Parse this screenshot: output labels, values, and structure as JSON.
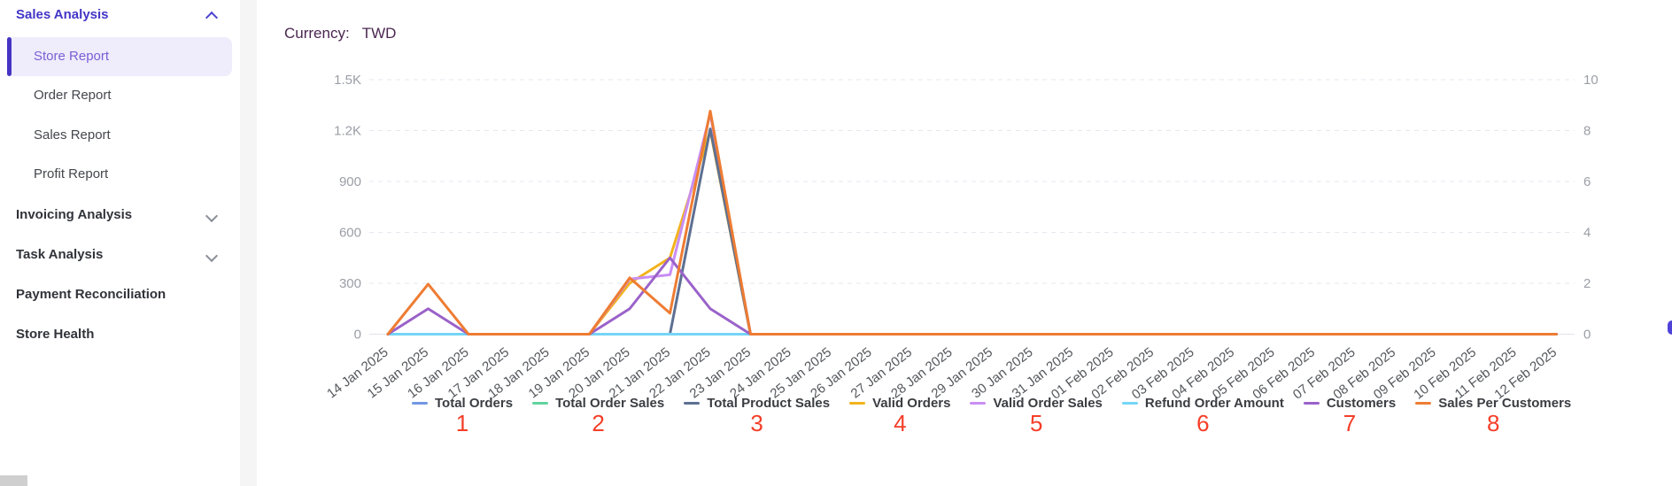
{
  "sidebar": {
    "sections": [
      {
        "label": "Sales Analysis",
        "state": "expanded",
        "accent_color": "#4335c6",
        "items": [
          {
            "label": "Store Report",
            "active": true
          },
          {
            "label": "Order Report",
            "active": false
          },
          {
            "label": "Sales Report",
            "active": false
          },
          {
            "label": "Profit Report",
            "active": false
          }
        ]
      },
      {
        "label": "Invoicing Analysis",
        "state": "collapsed"
      },
      {
        "label": "Task Analysis",
        "state": "collapsed"
      },
      {
        "label": "Payment Reconciliation",
        "state": "none"
      },
      {
        "label": "Store Health",
        "state": "none"
      }
    ]
  },
  "header": {
    "currency_label": "Currency:",
    "currency_value": "TWD"
  },
  "chart_data": {
    "type": "line",
    "title": "",
    "grid": true,
    "legend_position": "bottom",
    "left_axis": {
      "ticks": [
        "0",
        "300",
        "600",
        "900",
        "1.2K",
        "1.5K"
      ],
      "min": 0,
      "max": 1500
    },
    "right_axis": {
      "ticks": [
        "0",
        "2",
        "4",
        "6",
        "8",
        "10"
      ],
      "min": 0,
      "max": 10
    },
    "categories": [
      "14 Jan 2025",
      "15 Jan 2025",
      "16 Jan 2025",
      "17 Jan 2025",
      "18 Jan 2025",
      "19 Jan 2025",
      "20 Jan 2025",
      "21 Jan 2025",
      "22 Jan 2025",
      "23 Jan 2025",
      "24 Jan 2025",
      "25 Jan 2025",
      "26 Jan 2025",
      "27 Jan 2025",
      "28 Jan 2025",
      "29 Jan 2025",
      "30 Jan 2025",
      "31 Jan 2025",
      "01 Feb 2025",
      "02 Feb 2025",
      "03 Feb 2025",
      "04 Feb 2025",
      "05 Feb 2025",
      "06 Feb 2025",
      "07 Feb 2025",
      "08 Feb 2025",
      "09 Feb 2025",
      "10 Feb 2025",
      "11 Feb 2025",
      "12 Feb 2025"
    ],
    "series": [
      {
        "name": "Total Orders",
        "mark": "1",
        "color": "#7297e3",
        "axis": "right",
        "values": [
          0,
          0,
          0,
          0,
          0,
          0,
          0,
          0,
          0,
          0,
          0,
          0,
          0,
          0,
          0,
          0,
          0,
          0,
          0,
          0,
          0,
          0,
          0,
          0,
          0,
          0,
          0,
          0,
          0,
          0
        ]
      },
      {
        "name": "Total Order Sales",
        "mark": "2",
        "color": "#5fd49e",
        "axis": "left",
        "values": [
          0,
          0,
          0,
          0,
          0,
          0,
          0,
          0,
          0,
          0,
          0,
          0,
          0,
          0,
          0,
          0,
          0,
          0,
          0,
          0,
          0,
          0,
          0,
          0,
          0,
          0,
          0,
          0,
          0,
          0
        ]
      },
      {
        "name": "Total Product Sales",
        "mark": "3",
        "color": "#5d7092",
        "axis": "left",
        "values": [
          0,
          0,
          0,
          0,
          0,
          0,
          0,
          0,
          1210,
          0,
          0,
          0,
          0,
          0,
          0,
          0,
          0,
          0,
          0,
          0,
          0,
          0,
          0,
          0,
          0,
          0,
          0,
          0,
          0,
          0
        ]
      },
      {
        "name": "Valid Orders",
        "mark": "4",
        "color": "#f2b31c",
        "axis": "right",
        "values": [
          0,
          0,
          0,
          0,
          0,
          0,
          2,
          3,
          8,
          0,
          0,
          0,
          0,
          0,
          0,
          0,
          0,
          0,
          0,
          0,
          0,
          0,
          0,
          0,
          0,
          0,
          0,
          0,
          0,
          0
        ]
      },
      {
        "name": "Valid Order Sales",
        "mark": "5",
        "color": "#c98ef3",
        "axis": "left",
        "values": [
          0,
          0,
          0,
          0,
          0,
          0,
          325,
          350,
          1300,
          0,
          0,
          0,
          0,
          0,
          0,
          0,
          0,
          0,
          0,
          0,
          0,
          0,
          0,
          0,
          0,
          0,
          0,
          0,
          0,
          0
        ]
      },
      {
        "name": "Refund Order Amount",
        "mark": "6",
        "color": "#75d5f6",
        "axis": "left",
        "values": [
          0,
          0,
          0,
          0,
          0,
          0,
          0,
          0,
          0,
          0,
          0,
          0,
          0,
          0,
          0,
          0,
          0,
          0,
          0,
          0,
          0,
          0,
          0,
          0,
          0,
          0,
          0,
          0,
          0,
          0
        ]
      },
      {
        "name": "Customers",
        "mark": "7",
        "color": "#9a62c9",
        "axis": "right",
        "values": [
          0,
          1,
          0,
          0,
          0,
          0,
          1,
          3,
          1,
          0,
          0,
          0,
          0,
          0,
          0,
          0,
          0,
          0,
          0,
          0,
          0,
          0,
          0,
          0,
          0,
          0,
          0,
          0,
          0,
          0
        ]
      },
      {
        "name": "Sales Per Customers",
        "mark": "8",
        "color": "#ee7c33",
        "axis": "left",
        "values": [
          0,
          295,
          0,
          0,
          0,
          0,
          332,
          124,
          1315,
          0,
          0,
          0,
          0,
          0,
          0,
          0,
          0,
          0,
          0,
          0,
          0,
          0,
          0,
          0,
          0,
          0,
          0,
          0,
          0,
          0
        ]
      }
    ],
    "draw_order": [
      0,
      1,
      3,
      4,
      2,
      5,
      6,
      7
    ],
    "annotation_color": "#f53e28"
  }
}
